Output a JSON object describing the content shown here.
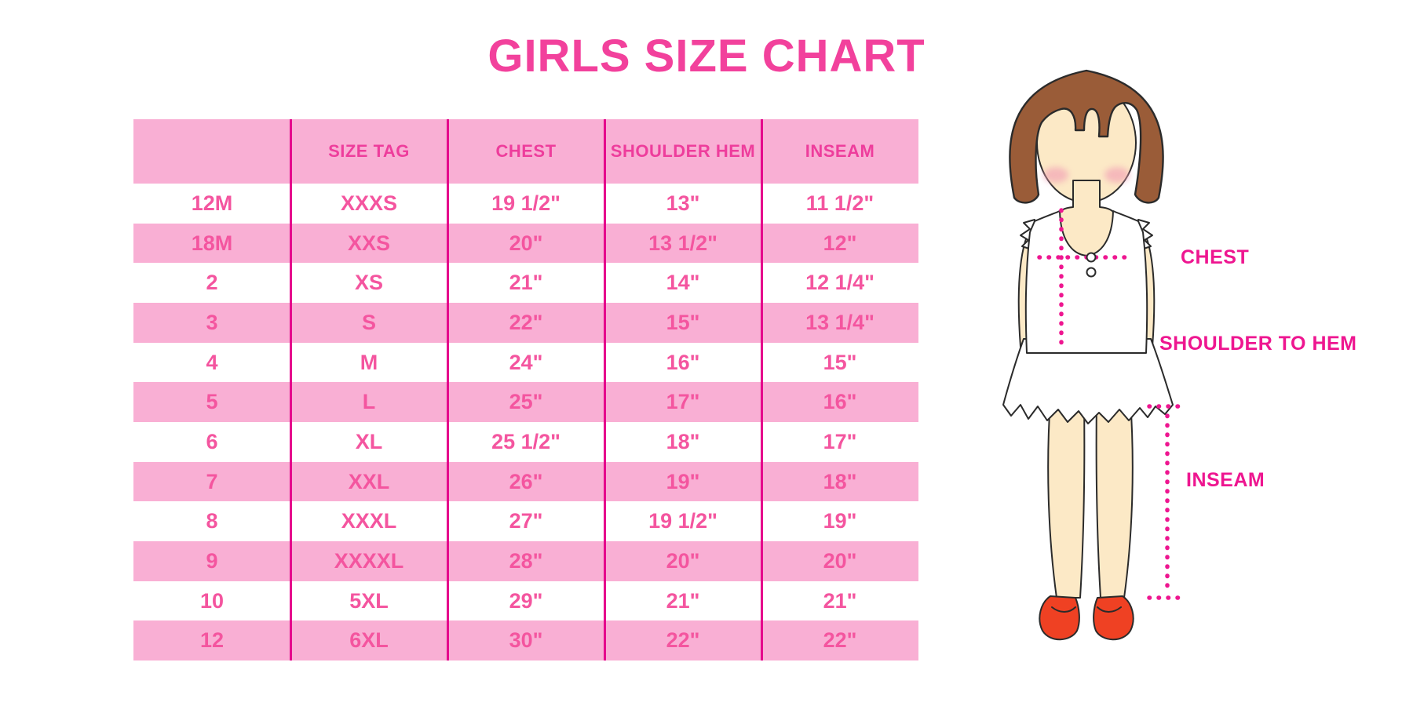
{
  "page_title": "GIRLS SIZE CHART",
  "colors": {
    "title_pink": "#F2419C",
    "band_pink": "#F9AFD4",
    "line_pink": "#E5058C",
    "header_text_pink": "#EE3D9C",
    "cell_text_pink": "#F4559F",
    "label_magenta": "#EE1690",
    "hair_brown": "#9A5C38",
    "skin": "#FCE9C6",
    "blush": "#F2A0B5",
    "shoe_red": "#EF4123",
    "outline_dark": "#2B2B2B"
  },
  "figure": {
    "labels": {
      "chest": "CHEST",
      "shoulder_to_hem": "SHOULDER TO HEM",
      "inseam": "INSEAM"
    }
  },
  "chart_data": {
    "type": "table",
    "title": "GIRLS SIZE CHART",
    "columns": [
      "",
      "SIZE TAG",
      "CHEST",
      "SHOULDER HEM",
      "INSEAM"
    ],
    "rows": [
      [
        "12M",
        "XXXS",
        "19 1/2\"",
        "13\"",
        "11 1/2\""
      ],
      [
        "18M",
        "XXS",
        "20\"",
        "13 1/2\"",
        "12\""
      ],
      [
        "2",
        "XS",
        "21\"",
        "14\"",
        "12 1/4\""
      ],
      [
        "3",
        "S",
        "22\"",
        "15\"",
        "13 1/4\""
      ],
      [
        "4",
        "M",
        "24\"",
        "16\"",
        "15\""
      ],
      [
        "5",
        "L",
        "25\"",
        "17\"",
        "16\""
      ],
      [
        "6",
        "XL",
        "25 1/2\"",
        "18\"",
        "17\""
      ],
      [
        "7",
        "XXL",
        "26\"",
        "19\"",
        "18\""
      ],
      [
        "8",
        "XXXL",
        "27\"",
        "19 1/2\"",
        "19\""
      ],
      [
        "9",
        "XXXXL",
        "28\"",
        "20\"",
        "20\""
      ],
      [
        "10",
        "5XL",
        "29\"",
        "21\"",
        "21\""
      ],
      [
        "12",
        "6XL",
        "30\"",
        "22\"",
        "22\""
      ]
    ],
    "row_striping": "alternating white and pink, first data row white",
    "annotations": [
      "CHEST",
      "SHOULDER TO HEM",
      "INSEAM"
    ],
    "legend_position": "none"
  }
}
